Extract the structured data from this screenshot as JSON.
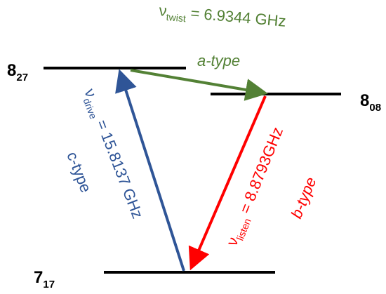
{
  "levels": [
    {
      "main": "8",
      "sub": "27"
    },
    {
      "main": "8",
      "sub": "08"
    },
    {
      "main": "7",
      "sub": "17"
    }
  ],
  "transitions": [
    {
      "symbol": "ν",
      "subscript": "twist",
      "equation": " = 6.9344 GHz",
      "type": "a-type"
    },
    {
      "symbol": "ν",
      "subscript": "drive",
      "equation": " = 15.8137 GHz",
      "type": "c-type"
    },
    {
      "symbol": "ν",
      "subscript": "listen",
      "equation": " = 8.8793GHz",
      "type": "b-type"
    }
  ]
}
